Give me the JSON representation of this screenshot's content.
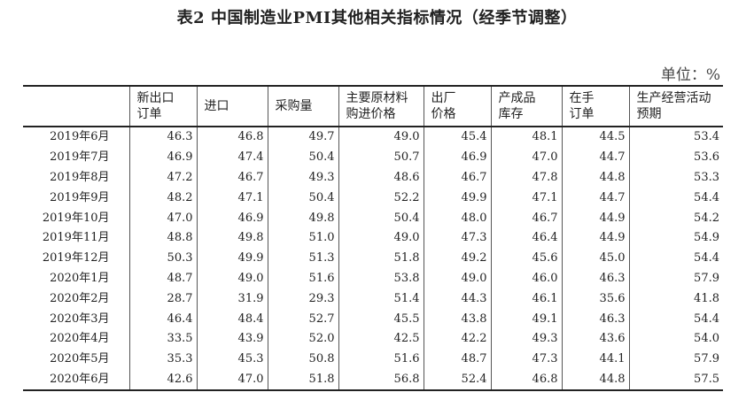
{
  "title": "表2 中国制造业PMI其他相关指标情况（经季节调整）",
  "unit": "单位：%",
  "columns": [
    [
      "",
      ""
    ],
    [
      "新出口",
      "订单"
    ],
    [
      "进口",
      ""
    ],
    [
      "采购量",
      ""
    ],
    [
      "主要原材料",
      "购进价格"
    ],
    [
      "出厂",
      "价格"
    ],
    [
      "产成品",
      "库存"
    ],
    [
      "在手",
      "订单"
    ],
    [
      "生产经营活动",
      "预期"
    ]
  ],
  "rows": [
    [
      "2019年6月",
      "46.3",
      "46.8",
      "49.7",
      "49.0",
      "45.4",
      "48.1",
      "44.5",
      "53.4"
    ],
    [
      "2019年7月",
      "46.9",
      "47.4",
      "50.4",
      "50.7",
      "46.9",
      "47.0",
      "44.7",
      "53.6"
    ],
    [
      "2019年8月",
      "47.2",
      "46.7",
      "49.3",
      "48.6",
      "46.7",
      "47.8",
      "44.8",
      "53.3"
    ],
    [
      "2019年9月",
      "48.2",
      "47.1",
      "50.4",
      "52.2",
      "49.9",
      "47.1",
      "44.7",
      "54.4"
    ],
    [
      "2019年10月",
      "47.0",
      "46.9",
      "49.8",
      "50.4",
      "48.0",
      "46.7",
      "44.9",
      "54.2"
    ],
    [
      "2019年11月",
      "48.8",
      "49.8",
      "51.0",
      "49.0",
      "47.3",
      "46.4",
      "44.9",
      "54.9"
    ],
    [
      "2019年12月",
      "50.3",
      "49.9",
      "51.3",
      "51.8",
      "49.2",
      "45.6",
      "45.0",
      "54.4"
    ],
    [
      "2020年1月",
      "48.7",
      "49.0",
      "51.6",
      "53.8",
      "49.0",
      "46.0",
      "46.3",
      "57.9"
    ],
    [
      "2020年2月",
      "28.7",
      "31.9",
      "29.3",
      "51.4",
      "44.3",
      "46.1",
      "35.6",
      "41.8"
    ],
    [
      "2020年3月",
      "46.4",
      "48.4",
      "52.7",
      "45.5",
      "43.8",
      "49.1",
      "46.3",
      "54.4"
    ],
    [
      "2020年4月",
      "33.5",
      "43.9",
      "52.0",
      "42.5",
      "42.2",
      "49.3",
      "43.6",
      "54.0"
    ],
    [
      "2020年5月",
      "35.3",
      "45.3",
      "50.8",
      "51.6",
      "48.7",
      "47.3",
      "44.1",
      "57.9"
    ],
    [
      "2020年6月",
      "42.6",
      "47.0",
      "51.8",
      "56.8",
      "52.4",
      "46.8",
      "44.8",
      "57.5"
    ]
  ]
}
